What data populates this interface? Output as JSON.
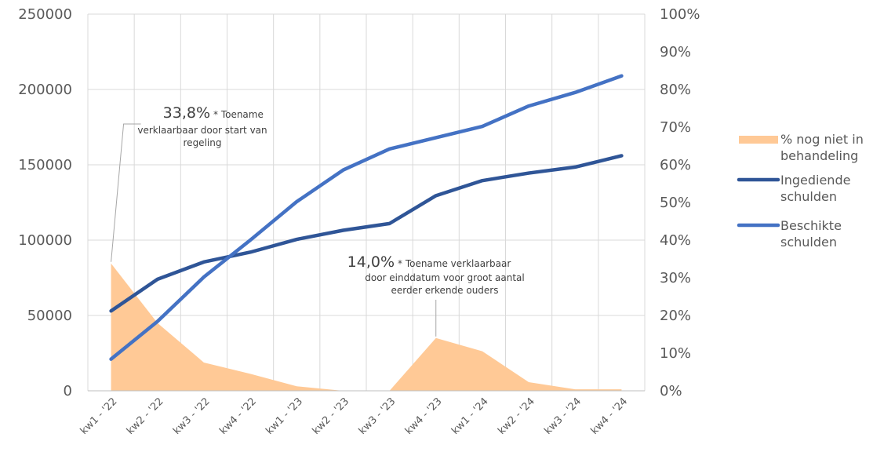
{
  "chart_data": {
    "type": "line",
    "categories": [
      "kw1 - '22",
      "kw2 - '22",
      "kw3 - '22",
      "kw4 - '22",
      "kw1 - '23",
      "kw2 - '23",
      "kw3 - '23",
      "kw4 - '23",
      "kw1 - '24",
      "kw2 - '24",
      "kw3 - '24",
      "kw4 - '24"
    ],
    "y_left": {
      "min": 0,
      "max": 250000,
      "ticks": [
        "0",
        "50000",
        "100000",
        "150000",
        "200000",
        "250000"
      ]
    },
    "y_right": {
      "min": 0,
      "max": 1,
      "ticks": [
        "0%",
        "10%",
        "20%",
        "30%",
        "40%",
        "50%",
        "60%",
        "70%",
        "80%",
        "90%",
        "100%"
      ]
    },
    "grid": true,
    "legend_position": "right",
    "series": [
      {
        "name": "% nog niet in behandeling",
        "type": "area",
        "axis": "right",
        "color": "#FFC996",
        "values": [
          0.338,
          0.18,
          0.075,
          0.045,
          0.012,
          0.0,
          0.0,
          0.14,
          0.105,
          0.023,
          0.004,
          0.004
        ]
      },
      {
        "name": "Ingediende schulden",
        "type": "line",
        "axis": "left",
        "color": "#2F5597",
        "values": [
          53000,
          74000,
          85500,
          92000,
          100500,
          106500,
          111000,
          129500,
          139500,
          144500,
          148500,
          156000
        ]
      },
      {
        "name": "Beschikte schulden",
        "type": "line",
        "axis": "left",
        "color": "#4472C4",
        "values": [
          21000,
          46000,
          75500,
          100000,
          125500,
          146500,
          160500,
          168000,
          175500,
          189000,
          198000,
          209000
        ]
      }
    ],
    "legend": [
      {
        "line1": "% nog niet in",
        "line2": "behandeling"
      },
      {
        "line1": "Ingediende",
        "line2": "schulden"
      },
      {
        "line1": "Beschikte",
        "line2": "schulden"
      }
    ],
    "annotations": [
      {
        "point_index": 0,
        "value": "33,8%",
        "note_line1": "* Toename",
        "note_line2": "verklaarbaar door start van",
        "note_line3": "regeling"
      },
      {
        "point_index": 7,
        "value": "14,0%",
        "note_line1": "* Toename verklaarbaar",
        "note_line2": "door einddatum voor groot aantal",
        "note_line3": "eerder erkende ouders"
      }
    ]
  }
}
